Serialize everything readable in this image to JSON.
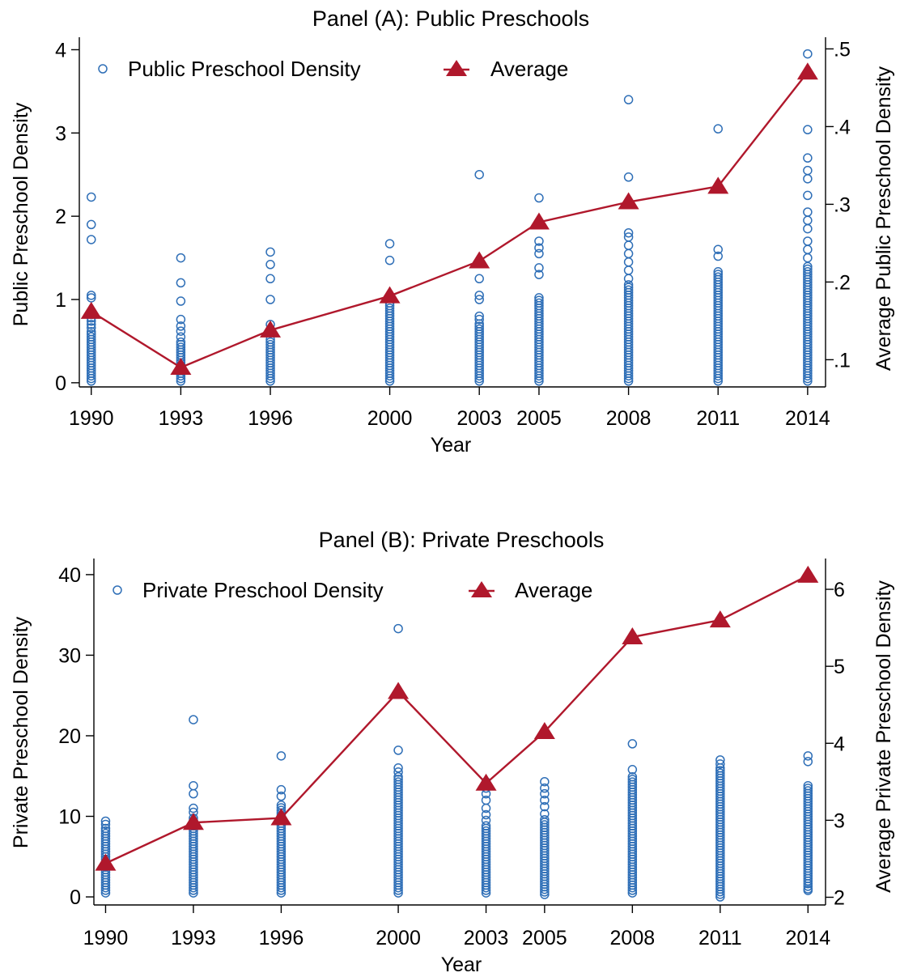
{
  "colors": {
    "scatter": "#2f6fb7",
    "average": "#b0182c"
  },
  "chart_data": [
    {
      "type": "scatter",
      "title": "Panel (A): Public Preschools",
      "xlabel": "Year",
      "ylabel": "Public Preschool Density",
      "ylabel_right": "Average Public Preschool Density",
      "legend": [
        "Public Preschool Density",
        "Average"
      ],
      "legend_position": "top",
      "x_ticks": [
        1990,
        1993,
        1996,
        2000,
        2003,
        2005,
        2008,
        2011,
        2014
      ],
      "xlim": [
        1989.6,
        2014.6
      ],
      "ylim": [
        -0.05,
        4.15
      ],
      "y_ticks": [
        0,
        1,
        2,
        3,
        4
      ],
      "y_tick_labels": [
        "0",
        "1",
        "2",
        "3",
        "4"
      ],
      "ylim_right": [
        0.065,
        0.515
      ],
      "y_ticks_right": [
        0.1,
        0.2,
        0.3,
        0.4,
        0.5
      ],
      "y_tick_labels_right": [
        ".1",
        ".2",
        ".3",
        ".4",
        ".5"
      ],
      "scatter_series": [
        {
          "x": 1990,
          "range": [
            0.02,
            0.62
          ],
          "extras": [
            0.66,
            0.7,
            0.74,
            0.78,
            0.82,
            1.02,
            1.05,
            1.72,
            1.9,
            2.23
          ]
        },
        {
          "x": 1993,
          "range": [
            0.02,
            0.5
          ],
          "extras": [
            0.55,
            0.62,
            0.68,
            0.76,
            0.98,
            1.2,
            1.5
          ]
        },
        {
          "x": 1996,
          "range": [
            0.02,
            0.55
          ],
          "extras": [
            0.6,
            0.7,
            1.0,
            1.25,
            1.42,
            1.57
          ]
        },
        {
          "x": 2000,
          "range": [
            0.02,
            0.98
          ],
          "extras": [
            1.02,
            1.47,
            1.67
          ]
        },
        {
          "x": 2003,
          "range": [
            0.02,
            0.72
          ],
          "extras": [
            0.76,
            0.8,
            1.0,
            1.05,
            1.25,
            2.5
          ]
        },
        {
          "x": 2005,
          "range": [
            0.02,
            1.05
          ],
          "extras": [
            1.3,
            1.38,
            1.55,
            1.62,
            1.7,
            2.22
          ]
        },
        {
          "x": 2008,
          "range": [
            0.02,
            1.2
          ],
          "extras": [
            1.25,
            1.35,
            1.45,
            1.55,
            1.65,
            1.75,
            1.8,
            2.47,
            3.4
          ]
        },
        {
          "x": 2011,
          "range": [
            0.02,
            1.35
          ],
          "extras": [
            1.52,
            1.6,
            3.05
          ]
        },
        {
          "x": 2014,
          "range": [
            0.02,
            1.4
          ],
          "extras": [
            1.5,
            1.6,
            1.7,
            1.85,
            1.95,
            2.05,
            2.25,
            2.45,
            2.55,
            2.7,
            3.04,
            3.95
          ]
        }
      ],
      "average": {
        "name": "Average",
        "x": [
          1990,
          1993,
          1996,
          2000,
          2003,
          2005,
          2008,
          2011,
          2014
        ],
        "values": [
          0.162,
          0.09,
          0.138,
          0.182,
          0.227,
          0.277,
          0.303,
          0.323,
          0.47
        ]
      }
    },
    {
      "type": "scatter",
      "title": "Panel (B): Private Preschools",
      "xlabel": "Year",
      "ylabel": "Private Preschool Density",
      "ylabel_right": "Average Private Preschool Density",
      "legend": [
        "Private Preschool Density",
        "Average"
      ],
      "legend_position": "top",
      "x_ticks": [
        1990,
        1993,
        1996,
        2000,
        2003,
        2005,
        2008,
        2011,
        2014
      ],
      "xlim": [
        1989.6,
        2014.6
      ],
      "ylim": [
        -1,
        42
      ],
      "y_ticks": [
        0,
        10,
        20,
        30,
        40
      ],
      "y_tick_labels": [
        "0",
        "10",
        "20",
        "30",
        "40"
      ],
      "ylim_right": [
        1.9,
        6.4
      ],
      "y_ticks_right": [
        2,
        3,
        4,
        5,
        6
      ],
      "y_tick_labels_right": [
        "2",
        "3",
        "4",
        "5",
        "6"
      ],
      "scatter_series": [
        {
          "x": 1990,
          "range": [
            0.5,
            8.5
          ],
          "extras": [
            9.0,
            9.4
          ]
        },
        {
          "x": 1993,
          "range": [
            0.5,
            9.8
          ],
          "extras": [
            10.5,
            11.0,
            12.8,
            13.8,
            22.0
          ]
        },
        {
          "x": 1996,
          "range": [
            0.5,
            11.5
          ],
          "extras": [
            12.5,
            13.3,
            17.5
          ]
        },
        {
          "x": 2000,
          "range": [
            0.5,
            15.0
          ],
          "extras": [
            15.5,
            16.0,
            18.2,
            33.3
          ]
        },
        {
          "x": 2003,
          "range": [
            0.5,
            9.0
          ],
          "extras": [
            9.5,
            10.2,
            11.0,
            12.0,
            12.8,
            13.5,
            14.3
          ]
        },
        {
          "x": 2005,
          "range": [
            0.3,
            9.8
          ],
          "extras": [
            10.3,
            11.2,
            12.0,
            12.8,
            13.5,
            14.3
          ]
        },
        {
          "x": 2008,
          "range": [
            0.5,
            15.0
          ],
          "extras": [
            15.8,
            19.0
          ]
        },
        {
          "x": 2011,
          "range": [
            0,
            16.0
          ],
          "extras": [
            16.5,
            17.0
          ]
        },
        {
          "x": 2014,
          "range": [
            1.0,
            14.0
          ],
          "extras": [
            0.8,
            16.8,
            17.5
          ]
        }
      ],
      "average": {
        "name": "Average",
        "x": [
          1990,
          1993,
          1996,
          2000,
          2003,
          2005,
          2008,
          2011,
          2014
        ],
        "values": [
          2.44,
          2.97,
          3.03,
          4.67,
          3.48,
          4.15,
          5.38,
          5.6,
          6.18
        ]
      }
    }
  ]
}
